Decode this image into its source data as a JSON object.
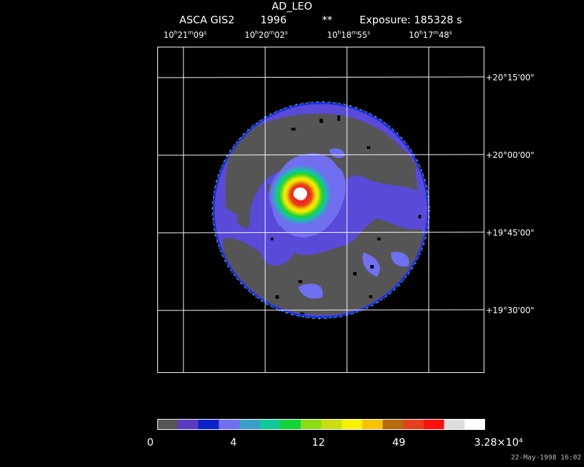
{
  "title": "AD_LEO",
  "subtitle": {
    "instrument": "ASCA GIS2",
    "year": "1996",
    "flag": "**",
    "exposure": "Exposure: 185328 s"
  },
  "ra_labels": [
    {
      "h": "10",
      "m": "21",
      "s": "09"
    },
    {
      "h": "10",
      "m": "20",
      "s": "02"
    },
    {
      "h": "10",
      "m": "18",
      "s": "55"
    },
    {
      "h": "10",
      "m": "17",
      "s": "48"
    }
  ],
  "dec_labels": [
    "+20°15'00\"",
    "+20°00'00\"",
    "+19°45'00\"",
    "+19°30'00\""
  ],
  "colorbar": {
    "colors": [
      "#555555",
      "#5b3bbf",
      "#0b22c8",
      "#6f6ff0",
      "#3a9fc8",
      "#12c89a",
      "#15d43a",
      "#8ddc14",
      "#c9df12",
      "#f6f200",
      "#f5c400",
      "#b86a10",
      "#e4401c",
      "#ff1010",
      "#dddddd",
      "#ffffff"
    ],
    "labels": [
      "0",
      "4",
      "12",
      "49",
      "3.28×10⁴"
    ]
  },
  "date_stamp": "22-May-1998 16:02",
  "colors": {
    "background": "#000000",
    "grid": "#ffffff",
    "disk_fill": "#555555",
    "diffuse": "#5a4ad8"
  }
}
